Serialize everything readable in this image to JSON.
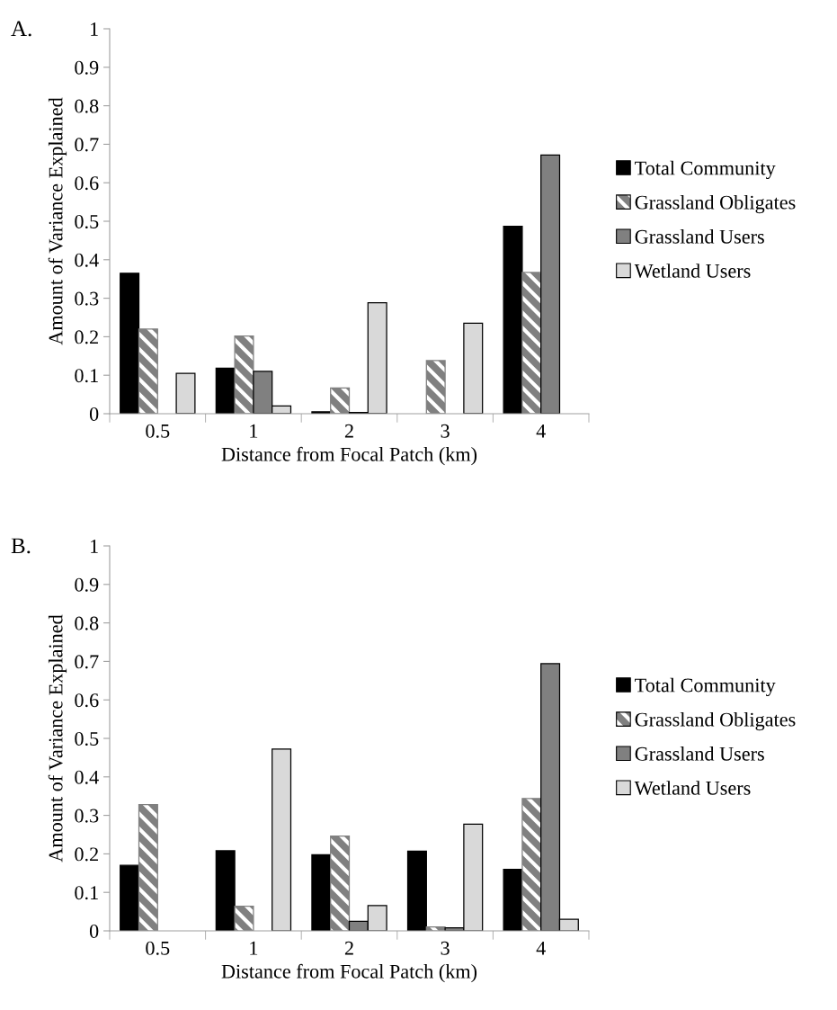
{
  "chart_data": [
    {
      "type": "bar",
      "title": "A.",
      "xlabel": "Distance from Focal Patch (km)",
      "ylabel": "Amount of Variance Explained",
      "categories": [
        "0.5",
        "1",
        "2",
        "3",
        "4"
      ],
      "series": [
        {
          "name": "Total Community",
          "color": "#000000",
          "values": [
            0.365,
            0.118,
            0.005,
            null,
            0.487
          ]
        },
        {
          "name": "Grassland Obligates",
          "color": "#808080",
          "values": [
            0.22,
            0.202,
            0.067,
            0.138,
            0.367
          ]
        },
        {
          "name": "Grassland Users",
          "color": "#808080",
          "values": [
            null,
            0.11,
            0.003,
            null,
            0.672
          ]
        },
        {
          "name": "Wetland Users",
          "color": "#d9d9d9",
          "values": [
            0.105,
            0.02,
            0.288,
            0.235,
            null
          ]
        }
      ],
      "ylim": [
        0,
        1
      ],
      "yticks": [
        0,
        0.1,
        0.2,
        0.3,
        0.4,
        0.5,
        0.6,
        0.7,
        0.8,
        0.9,
        1
      ],
      "grid": false,
      "legend": "right"
    },
    {
      "type": "bar",
      "title": "B.",
      "xlabel": "Distance from Focal Patch (km)",
      "ylabel": "Amount of Variance Explained",
      "categories": [
        "0.5",
        "1",
        "2",
        "3",
        "4"
      ],
      "series": [
        {
          "name": "Total Community",
          "color": "#000000",
          "values": [
            0.17,
            0.208,
            0.198,
            0.207,
            0.16
          ]
        },
        {
          "name": "Grassland Obligates",
          "color": "#808080",
          "values": [
            0.328,
            0.064,
            0.246,
            0.01,
            0.344
          ]
        },
        {
          "name": "Grassland Users",
          "color": "#808080",
          "values": [
            null,
            null,
            0.025,
            0.008,
            0.694
          ]
        },
        {
          "name": "Wetland Users",
          "color": "#d9d9d9",
          "values": [
            null,
            0.472,
            0.066,
            0.277,
            0.03
          ]
        }
      ],
      "ylim": [
        0,
        1
      ],
      "yticks": [
        0,
        0.1,
        0.2,
        0.3,
        0.4,
        0.5,
        0.6,
        0.7,
        0.8,
        0.9,
        1
      ],
      "grid": false,
      "legend": "right"
    }
  ]
}
